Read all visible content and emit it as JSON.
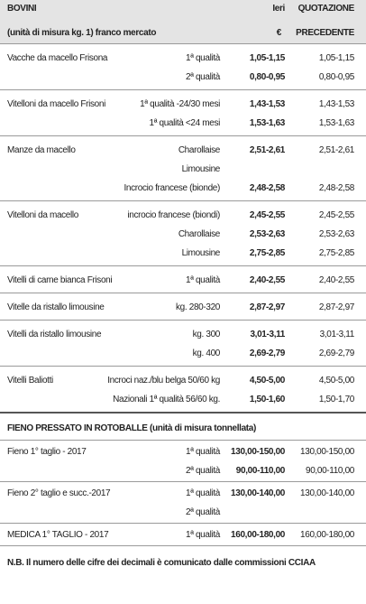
{
  "header": {
    "title": "BOVINI",
    "unit": "(unità di misura kg. 1) franco mercato",
    "today": "Ieri",
    "currency": "€",
    "previous_1": "QUOTAZIONE",
    "previous_2": "PRECEDENTE"
  },
  "bovini": [
    {
      "name": "Vacche da macello Frisona",
      "rows": [
        {
          "grade": "1ª qualità",
          "today": "1,05-1,15",
          "previous": "1,05-1,15"
        },
        {
          "grade": "2ª qualità",
          "today": "0,80-0,95",
          "previous": "0,80-0,95"
        }
      ]
    },
    {
      "name": "Vitelloni da macello Frisoni",
      "rows": [
        {
          "grade": "1ª qualità -24/30 mesi",
          "today": "1,43-1,53",
          "previous": "1,43-1,53"
        },
        {
          "grade": "1ª qualità <24 mesi",
          "today": "1,53-1,63",
          "previous": "1,53-1,63"
        }
      ]
    },
    {
      "name": "Manze da macello",
      "rows": [
        {
          "grade": "Charollaise",
          "today": "2,51-2,61",
          "previous": "2,51-2,61"
        },
        {
          "grade": "Limousine"
        },
        {
          "grade": "Incrocio francese (bionde)",
          "today": "2,48-2,58",
          "previous": "2,48-2,58"
        }
      ]
    },
    {
      "name": "Vitelloni da macello",
      "rows": [
        {
          "grade": "incrocio francese (biondi)",
          "today": "2,45-2,55",
          "previous": "2,45-2,55"
        },
        {
          "grade": "Charollaise",
          "today": "2,53-2,63",
          "previous": "2,53-2,63"
        },
        {
          "grade": "Limousine",
          "today": "2,75-2,85",
          "previous": "2,75-2,85"
        }
      ]
    },
    {
      "name": "Vitelli di carne bianca Frisoni",
      "rows": [
        {
          "grade": "1ª qualità",
          "today": "2,40-2,55",
          "previous": "2,40-2,55"
        }
      ]
    },
    {
      "name": "Vitelle da ristallo limousine",
      "rows": [
        {
          "grade": "kg. 280-320",
          "today": "2,87-2,97",
          "previous": "2,87-2,97"
        }
      ]
    },
    {
      "name": "Vitelli da ristallo limousine",
      "rows": [
        {
          "grade": "kg. 300",
          "today": "3,01-3,11",
          "previous": "3,01-3,11"
        },
        {
          "grade": "kg. 400",
          "today": "2,69-2,79",
          "previous": "2,69-2,79"
        }
      ]
    },
    {
      "name": "Vitelli Baliotti",
      "rows": [
        {
          "grade": "Incroci naz./blu belga 50/60 kg",
          "today": "4,50-5,00",
          "previous": "4,50-5,00"
        },
        {
          "grade": "Nazionali 1ª qualità 56/60 kg.",
          "today": "1,50-1,60",
          "previous": "1,50-1,70"
        }
      ]
    }
  ],
  "fieno_title": "FIENO PRESSATO IN ROTOBALLE (unità di misura tonnellata)",
  "fieno": [
    {
      "name": "Fieno 1° taglio - 2017",
      "rows": [
        {
          "grade": "1ª qualità",
          "today": "130,00-150,00",
          "previous": "130,00-150,00"
        },
        {
          "grade": "2ª qualità",
          "today": "90,00-110,00",
          "previous": "90,00-110,00"
        }
      ]
    },
    {
      "name": "Fieno 2° taglio e succ.-2017",
      "rows": [
        {
          "grade": "1ª qualità",
          "today": "130,00-140,00",
          "previous": "130,00-140,00"
        },
        {
          "grade": "2ª qualità"
        }
      ]
    },
    {
      "name": "MEDICA 1° TAGLIO - 2017",
      "rows": [
        {
          "grade": "1ª qualità",
          "today": "160,00-180,00",
          "previous": "160,00-180,00"
        }
      ]
    }
  ],
  "footnote": "N.B. Il numero delle cifre dei decimali è comunicato dalle commissioni CCIAA"
}
